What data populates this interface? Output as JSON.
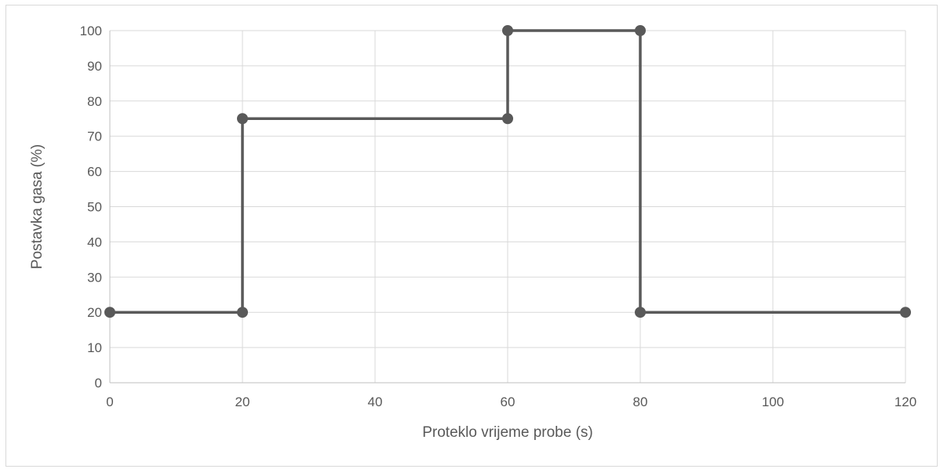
{
  "chart_data": {
    "type": "line",
    "title": "",
    "xlabel": "Proteklo vrijeme probe (s)",
    "ylabel": "Postavka gasa (%)",
    "xlim": [
      0,
      120
    ],
    "ylim": [
      0,
      100
    ],
    "xticks": [
      0,
      20,
      40,
      60,
      80,
      100,
      120
    ],
    "yticks": [
      0,
      10,
      20,
      30,
      40,
      50,
      60,
      70,
      80,
      90,
      100
    ],
    "grid": true,
    "legend": "none",
    "series": [
      {
        "color": "#595959",
        "marker": "circle",
        "points": [
          {
            "x": 0,
            "y": 20
          },
          {
            "x": 20,
            "y": 20
          },
          {
            "x": 20,
            "y": 75
          },
          {
            "x": 60,
            "y": 75
          },
          {
            "x": 60,
            "y": 100
          },
          {
            "x": 80,
            "y": 100
          },
          {
            "x": 80,
            "y": 20
          },
          {
            "x": 120,
            "y": 20
          }
        ]
      }
    ]
  }
}
